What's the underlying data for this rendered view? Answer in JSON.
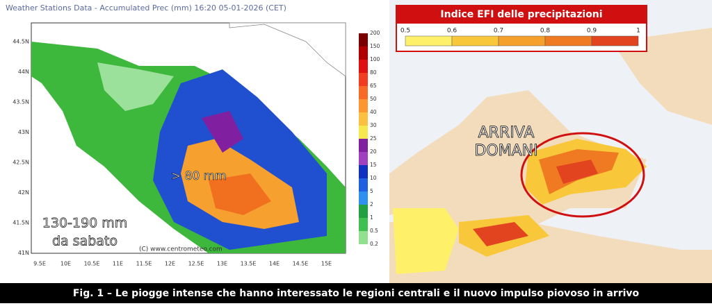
{
  "left_map": {
    "title": "Weather Stations Data - Accumulated Prec (mm)   16:20 05-01-2026 (CET)",
    "lat_labels": [
      "44.5N",
      "44N",
      "43.5N",
      "43N",
      "42.5N",
      "42N",
      "41.5N",
      "41N"
    ],
    "lon_labels": [
      "9.5E",
      "10E",
      "10.5E",
      "11E",
      "11.5E",
      "12E",
      "12.5E",
      "13E",
      "13.5E",
      "14E",
      "14.5E",
      "15E"
    ],
    "colorbar": {
      "labels": [
        "200",
        "150",
        "100",
        "80",
        "65",
        "50",
        "40",
        "30",
        "25",
        "20",
        "15",
        "10",
        "5",
        "2",
        "1",
        "0.5",
        "0.2"
      ],
      "colors": [
        "#7a0000",
        "#b00000",
        "#e01010",
        "#f03c20",
        "#f86a28",
        "#fb9630",
        "#fcc040",
        "#f7e850",
        "#8020a0",
        "#a040c0",
        "#1030c0",
        "#2060e0",
        "#3090f0",
        "#20a040",
        "#40c050",
        "#90e090"
      ]
    },
    "annotations": {
      "peak": "> 80 mm",
      "total_line1": "130-190 mm",
      "total_line2": "da sabato",
      "credit": "(C) www.centrometeo.com"
    }
  },
  "right_map": {
    "legend_title": "Indice EFI delle precipitazioni",
    "legend_labels": [
      "0.5",
      "0.6",
      "0.7",
      "0.8",
      "0.9",
      "1"
    ],
    "legend_colors": [
      "#fff06a",
      "#f9c83a",
      "#f5a02a",
      "#ef7a22",
      "#e24420"
    ],
    "annotation_line1": "ARRIVA",
    "annotation_line2": "DOMANI"
  },
  "caption": "Fig. 1 – Le piogge intense che hanno interessato le regioni centrali e il nuovo impulso piovoso in arrivo"
}
